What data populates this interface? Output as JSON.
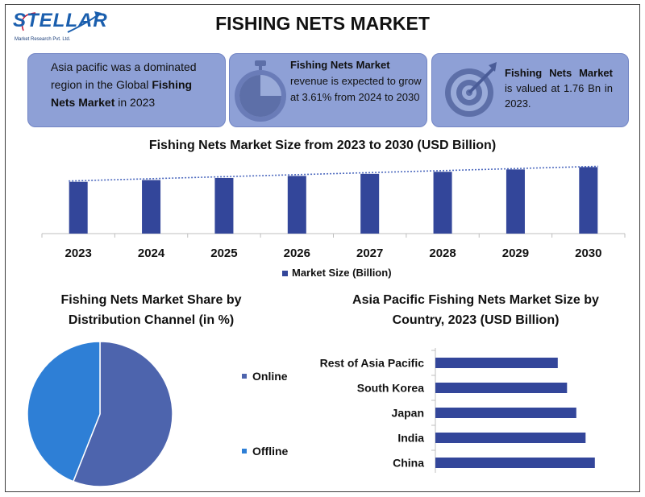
{
  "brand": {
    "name": "STELLAR",
    "subtitle": "Market Research Pvt. Ltd.",
    "color": "#1b5fae"
  },
  "page_title": "FISHING NETS MARKET",
  "cards": [
    {
      "pre": "Asia pacific was a dominated region in the Global ",
      "bold": "Fishing Nets Market",
      "post": " in 2023",
      "icon": ""
    },
    {
      "bold": "Fishing Nets Market",
      "post": " revenue is expected to grow at 3.61% from 2024 to 2030",
      "icon": "stopwatch-icon"
    },
    {
      "bold": "Fishing Nets Market",
      "post": " is valued at 1.76 Bn in 2023.",
      "icon": "target-icon"
    }
  ],
  "colors": {
    "card_bg": "#8ea0d6",
    "bar": "#33469a",
    "online": "#4d64ad",
    "offline": "#2e7fd6"
  },
  "chart_data": [
    {
      "type": "bar",
      "title": "Fishing Nets Market Size from 2023 to 2030 (USD Billion)",
      "categories": [
        "2023",
        "2024",
        "2025",
        "2026",
        "2027",
        "2028",
        "2029",
        "2030"
      ],
      "series": [
        {
          "name": "Market Size (Billion)",
          "values": [
            1.76,
            1.82,
            1.89,
            1.96,
            2.03,
            2.1,
            2.18,
            2.26
          ]
        }
      ],
      "trendline": "dotted linear",
      "legend": "bottom",
      "ylim": [
        0,
        2.6
      ],
      "grid": false
    },
    {
      "type": "pie",
      "title": "Fishing Nets Market Share by Distribution Channel (in %)",
      "labels": [
        "Online",
        "Offline"
      ],
      "values": [
        56,
        44
      ],
      "legend": "right"
    },
    {
      "type": "bar",
      "orientation": "horizontal",
      "title": "Asia Pacific Fishing Nets Market Size by Country, 2023 (USD Billion)",
      "categories": [
        "Rest of Asia Pacific",
        "South Korea",
        "Japan",
        "India",
        "China"
      ],
      "values": [
        0.66,
        0.71,
        0.76,
        0.81,
        0.86
      ],
      "xlim": [
        0,
        0.9
      ],
      "grid": false
    }
  ]
}
